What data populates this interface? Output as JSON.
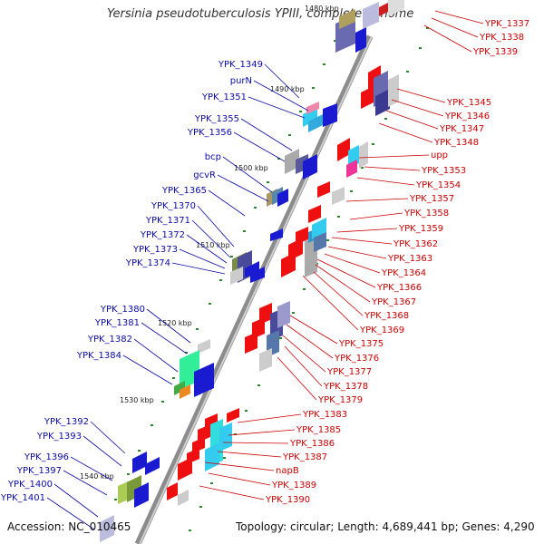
{
  "title": "Yersinia pseudotuberculosis YPIII, complete genome",
  "accession": "Accession: NC_010465",
  "topology": "Topology: circular; Length: 4,689,441 bp; Genes: 4,290",
  "colors": {
    "forward_label": "#0a0aa8",
    "reverse_label": "#cc0000",
    "backbone": "#8c8c8c"
  },
  "scale_labels": [
    "1490 kbp",
    "1500 kbp",
    "1510 kbp",
    "1520 kbp",
    "1530 kbp",
    "1540 kbp"
  ],
  "top_scale_label": "1480 kbp",
  "left_genes": [
    "YPK_1349",
    "purN",
    "YPK_1351",
    "YPK_1355",
    "YPK_1356",
    "bcp",
    "gcvR",
    "YPK_1365",
    "YPK_1370",
    "YPK_1371",
    "YPK_1372",
    "YPK_1373",
    "YPK_1374",
    "YPK_1380",
    "YPK_1381",
    "YPK_1382",
    "YPK_1384",
    "YPK_1392",
    "YPK_1393",
    "YPK_1396",
    "YPK_1397",
    "YPK_1400",
    "YPK_1401"
  ],
  "right_genes": [
    "YPK_1337",
    "YPK_1338",
    "YPK_1339",
    "YPK_1345",
    "YPK_1346",
    "YPK_1347",
    "YPK_1348",
    "upp",
    "YPK_1353",
    "YPK_1354",
    "YPK_1357",
    "YPK_1358",
    "YPK_1359",
    "YPK_1362",
    "YPK_1363",
    "YPK_1364",
    "YPK_1366",
    "YPK_1367",
    "YPK_1368",
    "YPK_1369",
    "YPK_1375",
    "YPK_1376",
    "YPK_1377",
    "YPK_1378",
    "YPK_1379",
    "YPK_1383",
    "YPK_1385",
    "YPK_1386",
    "YPK_1387",
    "napB",
    "YPK_1389",
    "YPK_1390"
  ]
}
